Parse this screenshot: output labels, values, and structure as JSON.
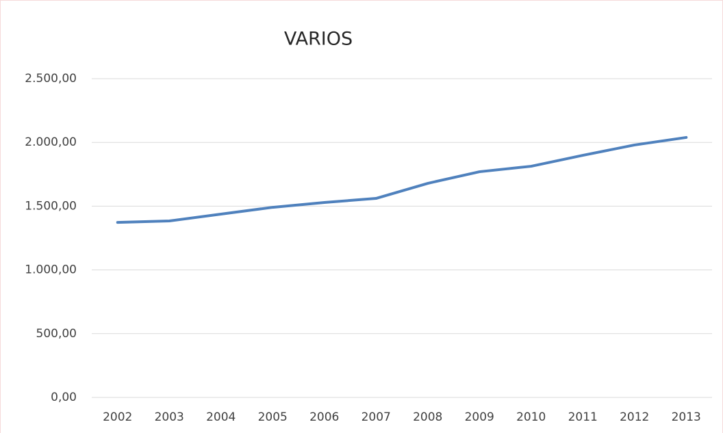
{
  "chart_data": {
    "type": "line",
    "title": "VARIOS",
    "categories": [
      "2002",
      "2003",
      "2004",
      "2005",
      "2006",
      "2007",
      "2008",
      "2009",
      "2010",
      "2011",
      "2012",
      "2013"
    ],
    "values": [
      1373,
      1384,
      1438,
      1491,
      1529,
      1561,
      1679,
      1770,
      1813,
      1899,
      1980,
      2039
    ],
    "color": "#4f81bd",
    "ylim": [
      0,
      2500
    ],
    "yticks": [
      {
        "value": 0,
        "label": "0,00"
      },
      {
        "value": 500,
        "label": "500,00"
      },
      {
        "value": 1000,
        "label": "1.000,00"
      },
      {
        "value": 1500,
        "label": "1.500,00"
      },
      {
        "value": 2000,
        "label": "2.000,00"
      },
      {
        "value": 2500,
        "label": "2.500,00"
      }
    ],
    "grid": true
  }
}
